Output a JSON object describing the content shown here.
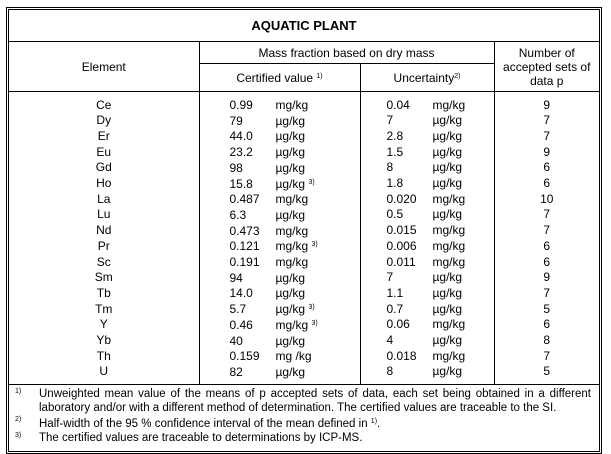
{
  "title": "AQUATIC PLANT",
  "headers": {
    "element": "Element",
    "mass_fraction": "Mass fraction based on dry mass",
    "certified": "Certified value",
    "certified_note": "1)",
    "uncertainty": "Uncertainty",
    "uncertainty_note": "2)",
    "number": "Number of accepted sets of data p"
  },
  "rows": [
    {
      "el": "Ce",
      "cv": "0.99",
      "cu": "mg/kg",
      "cn": "",
      "uv": "0.04",
      "uu": "mg/kg",
      "p": "9"
    },
    {
      "el": "Dy",
      "cv": "79",
      "cu": "µg/kg",
      "cn": "",
      "uv": "7",
      "uu": "µg/kg",
      "p": "7"
    },
    {
      "el": "Er",
      "cv": "44.0",
      "cu": "µg/kg",
      "cn": "",
      "uv": "2.8",
      "uu": "µg/kg",
      "p": "7"
    },
    {
      "el": "Eu",
      "cv": "23.2",
      "cu": "µg/kg",
      "cn": "",
      "uv": "1.5",
      "uu": "µg/kg",
      "p": "9"
    },
    {
      "el": "Gd",
      "cv": "98",
      "cu": "µg/kg",
      "cn": "",
      "uv": "8",
      "uu": "µg/kg",
      "p": "6"
    },
    {
      "el": "Ho",
      "cv": "15.8",
      "cu": "µg/kg",
      "cn": "3)",
      "uv": "1.8",
      "uu": "µg/kg",
      "p": "6"
    },
    {
      "el": "La",
      "cv": "0.487",
      "cu": "mg/kg",
      "cn": "",
      "uv": "0.020",
      "uu": "mg/kg",
      "p": "10"
    },
    {
      "el": "Lu",
      "cv": "6.3",
      "cu": "µg/kg",
      "cn": "",
      "uv": "0.5",
      "uu": "µg/kg",
      "p": "7"
    },
    {
      "el": "Nd",
      "cv": "0.473",
      "cu": "mg/kg",
      "cn": "",
      "uv": "0.015",
      "uu": "mg/kg",
      "p": "7"
    },
    {
      "el": "Pr",
      "cv": "0.121",
      "cu": "mg/kg",
      "cn": "3)",
      "uv": "0.006",
      "uu": "mg/kg",
      "p": "6"
    },
    {
      "el": "Sc",
      "cv": "0.191",
      "cu": "mg/kg",
      "cn": "",
      "uv": "0.011",
      "uu": "mg/kg",
      "p": "6"
    },
    {
      "el": "Sm",
      "cv": "94",
      "cu": "µg/kg",
      "cn": "",
      "uv": "7",
      "uu": "µg/kg",
      "p": "9"
    },
    {
      "el": "Tb",
      "cv": "14.0",
      "cu": "µg/kg",
      "cn": "",
      "uv": "1.1",
      "uu": "µg/kg",
      "p": "7"
    },
    {
      "el": "Tm",
      "cv": "5.7",
      "cu": "µg/kg",
      "cn": "3)",
      "uv": "0.7",
      "uu": "µg/kg",
      "p": "5"
    },
    {
      "el": "Y",
      "cv": "0.46",
      "cu": "mg/kg",
      "cn": "3)",
      "uv": "0.06",
      "uu": "mg/kg",
      "p": "6"
    },
    {
      "el": "Yb",
      "cv": "40",
      "cu": "µg/kg",
      "cn": "",
      "uv": "4",
      "uu": "µg/kg",
      "p": "8"
    },
    {
      "el": "Th",
      "cv": "0.159",
      "cu": "mg /kg",
      "cn": "",
      "uv": "0.018",
      "uu": "mg/kg",
      "p": "7"
    },
    {
      "el": "U",
      "cv": "82",
      "cu": "µg/kg",
      "cn": "",
      "uv": "8",
      "uu": "µg/kg",
      "p": "5"
    }
  ],
  "footnotes": [
    {
      "mark": "1)",
      "text": "Unweighted mean value of the means of p accepted sets of data, each set being obtained in a different laboratory and/or with a different method of determination. The certified values are traceable to the SI."
    },
    {
      "mark": "2)",
      "text": "Half-width of the 95 % confidence interval of the mean defined in",
      "ref": "1)",
      "tail": "."
    },
    {
      "mark": "3)",
      "text": "The certified values are traceable to determinations by ICP-MS."
    }
  ]
}
